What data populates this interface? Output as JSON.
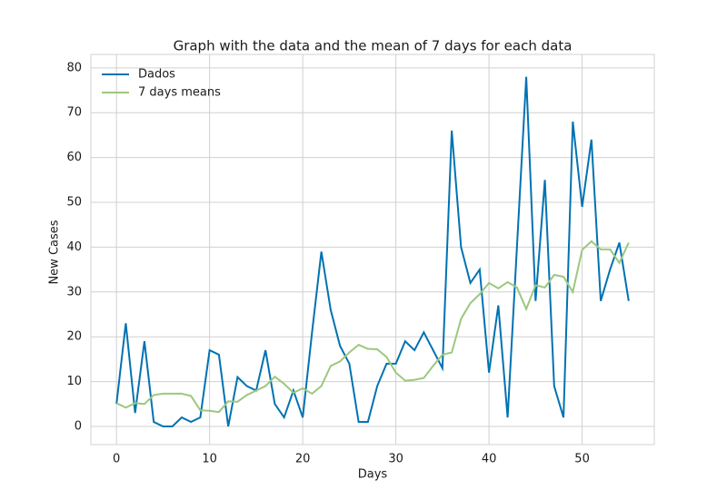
{
  "chart_data": {
    "type": "line",
    "title": "Graph with the data and the mean of 7 days for each data",
    "x_label": "Days",
    "y_label": "New Cases",
    "x": [
      0,
      1,
      2,
      3,
      4,
      5,
      6,
      7,
      8,
      9,
      10,
      11,
      12,
      13,
      14,
      15,
      16,
      17,
      18,
      19,
      20,
      21,
      22,
      23,
      24,
      25,
      26,
      27,
      28,
      29,
      30,
      31,
      32,
      33,
      34,
      35,
      36,
      37,
      38,
      39,
      40,
      41,
      42,
      43,
      44,
      45,
      46,
      47,
      48,
      49,
      50,
      51,
      52,
      53,
      54,
      55
    ],
    "series": [
      {
        "name": "Dados",
        "color": "#0072b2",
        "values": [
          5,
          23,
          3,
          19,
          1,
          0,
          0,
          2,
          1,
          2,
          17,
          16,
          0,
          11,
          9,
          8,
          17,
          5,
          2,
          8,
          2,
          21,
          39,
          26,
          18,
          14,
          1,
          1,
          9,
          14,
          14,
          19,
          17,
          21,
          17,
          13,
          66,
          40,
          32,
          35,
          12,
          27,
          2,
          40,
          78,
          28,
          55,
          9,
          2,
          68,
          49,
          64,
          28,
          35,
          41,
          28
        ]
      },
      {
        "name": "7 days means",
        "color": "#9dc77f",
        "values": [
          5.2,
          4.2,
          5.2,
          5.0,
          7.0,
          7.3,
          7.3,
          7.3,
          6.8,
          3.6,
          3.5,
          3.2,
          5.6,
          5.5,
          7.0,
          8.0,
          9.0,
          11.1,
          9.5,
          7.5,
          8.5,
          7.3,
          9.0,
          13.5,
          14.5,
          16.5,
          18.2,
          17.3,
          17.2,
          15.5,
          12.0,
          10.2,
          10.4,
          10.8,
          13.5,
          16.0,
          16.5,
          24.0,
          27.5,
          29.5,
          32.0,
          30.8,
          32.2,
          31.0,
          26.2,
          31.5,
          31.0,
          33.8,
          33.4,
          30.0,
          39.4,
          41.3,
          39.5,
          39.5,
          36.5,
          41.0
        ]
      }
    ],
    "xlim": [
      -2.75,
      57.75
    ],
    "xticks": [
      0,
      10,
      20,
      30,
      40,
      50
    ],
    "ylim": [
      -4.05,
      83.0
    ],
    "yticks": [
      0,
      10,
      20,
      30,
      40,
      50,
      60,
      70,
      80
    ],
    "grid": true,
    "legend": "upper-left"
  }
}
